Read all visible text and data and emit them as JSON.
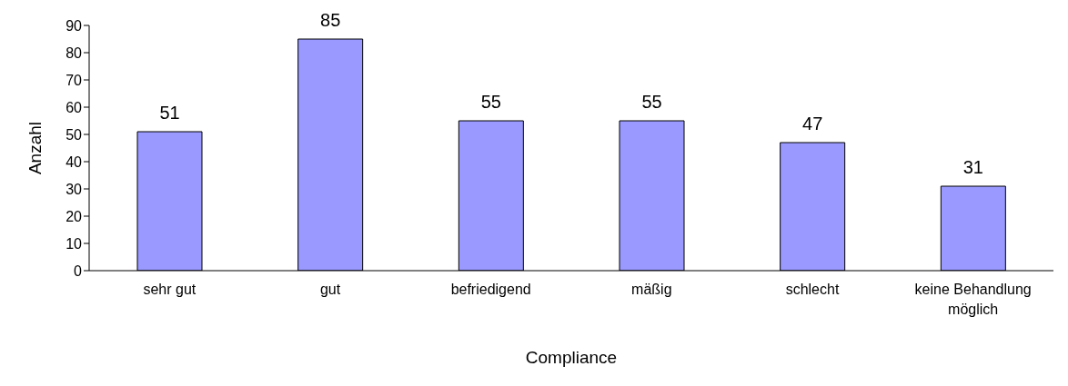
{
  "chart_data": {
    "type": "bar",
    "xlabel": "Compliance",
    "ylabel": "Anzahl",
    "categories": [
      "sehr gut",
      "gut",
      "befriedigend",
      "mäßig",
      "schlecht",
      "keine Behandlung möglich"
    ],
    "values": [
      51,
      85,
      55,
      55,
      47,
      31
    ],
    "color": "#9999ff",
    "ylim": [
      0,
      90
    ],
    "yticks": [
      0,
      10,
      20,
      30,
      40,
      50,
      60,
      70,
      80,
      90
    ],
    "data_labels": true,
    "grid": false,
    "legend": false
  }
}
